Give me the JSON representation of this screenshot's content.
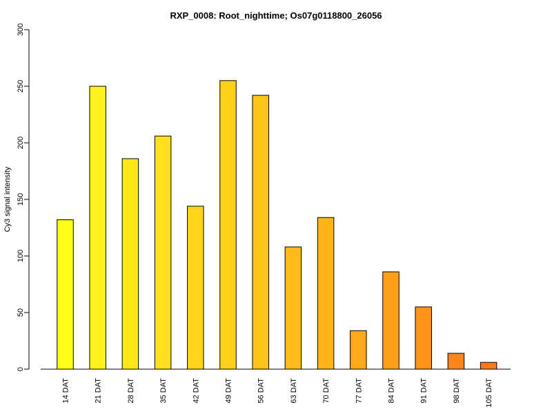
{
  "chart_data": {
    "type": "bar",
    "title": "RXP_0008: Root_nighttime; Os07g0118800_26056",
    "xlabel": "",
    "ylabel": "Cy3 signal intensity",
    "ylim": [
      0,
      300
    ],
    "yticks": [
      0,
      50,
      100,
      150,
      200,
      250,
      300
    ],
    "categories": [
      "14 DAT",
      "21 DAT",
      "28 DAT",
      "35 DAT",
      "42 DAT",
      "49 DAT",
      "56 DAT",
      "63 DAT",
      "70 DAT",
      "77 DAT",
      "84 DAT",
      "91 DAT",
      "98 DAT",
      "105 DAT"
    ],
    "values": [
      132,
      250,
      186,
      206,
      144,
      255,
      242,
      108,
      134,
      34,
      86,
      55,
      14,
      6
    ],
    "colors": [
      "#ffff19",
      "#fff21a",
      "#ffe81a",
      "#ffe01a",
      "#ffd51a",
      "#ffd01a",
      "#ffc41a",
      "#ffbb1a",
      "#ffb41a",
      "#ffa91a",
      "#ff9f1a",
      "#ff941a",
      "#ff861a",
      "#ff7a1a"
    ],
    "grid": false,
    "legend": "none"
  }
}
